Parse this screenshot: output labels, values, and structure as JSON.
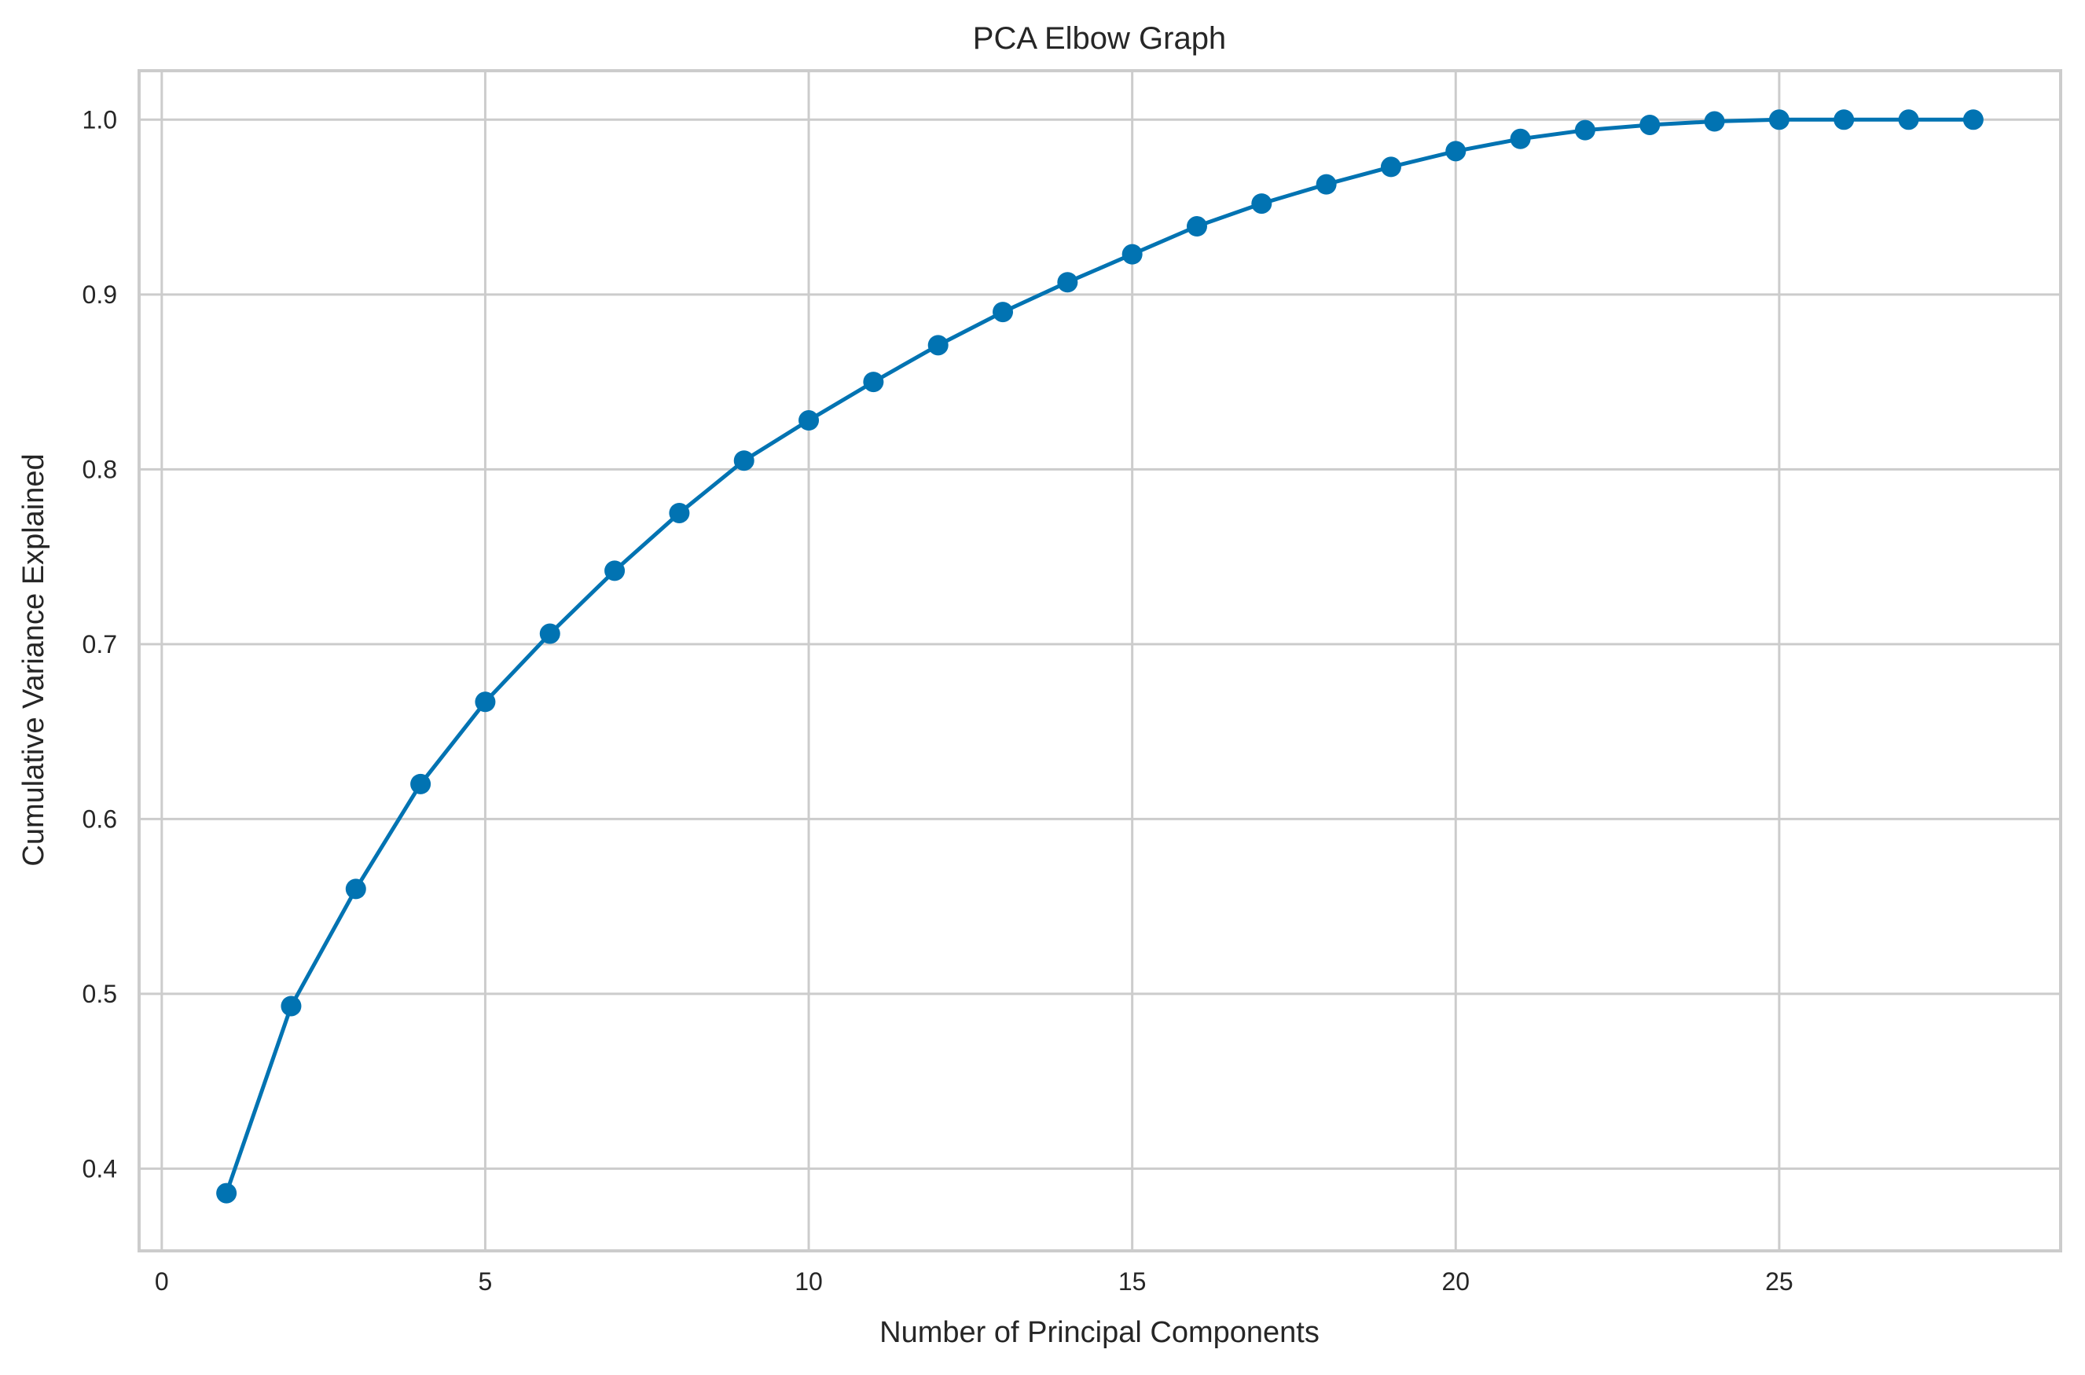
{
  "chart_data": {
    "type": "line",
    "title": "PCA Elbow Graph",
    "xlabel": "Number of Principal Components",
    "ylabel": "Cumulative Variance Explained",
    "xlim": [
      -0.35,
      29.35
    ],
    "ylim": [
      0.353,
      1.028
    ],
    "xticks": [
      0,
      5,
      10,
      15,
      20,
      25
    ],
    "yticks": [
      0.4,
      0.5,
      0.6,
      0.7,
      0.8,
      0.9,
      1.0
    ],
    "grid": true,
    "legend": "none",
    "marker": "circle",
    "series": [
      {
        "color": "#0173b2",
        "x": [
          1,
          2,
          3,
          4,
          5,
          6,
          7,
          8,
          9,
          10,
          11,
          12,
          13,
          14,
          15,
          16,
          17,
          18,
          19,
          20,
          21,
          22,
          23,
          24,
          25,
          26,
          27,
          28
        ],
        "y": [
          0.386,
          0.493,
          0.56,
          0.62,
          0.667,
          0.706,
          0.742,
          0.775,
          0.805,
          0.828,
          0.85,
          0.871,
          0.89,
          0.907,
          0.923,
          0.939,
          0.952,
          0.963,
          0.973,
          0.982,
          0.989,
          0.994,
          0.997,
          0.999,
          1.0,
          1.0,
          1.0,
          1.0
        ]
      }
    ]
  }
}
